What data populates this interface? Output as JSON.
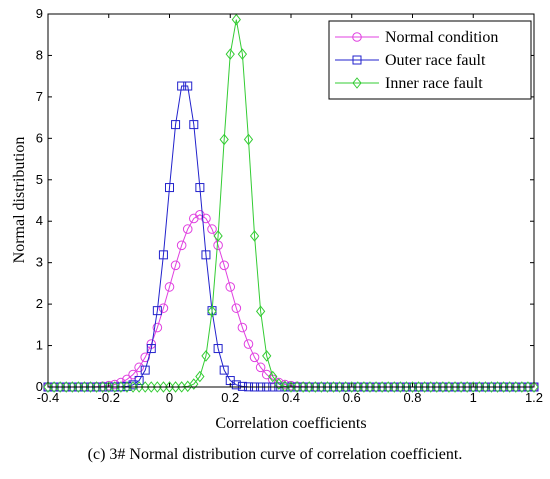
{
  "chart_data": {
    "type": "line",
    "title": "",
    "xlabel": "Correlation coefficients",
    "ylabel": "Normal distribution",
    "xlim": [
      -0.4,
      1.2
    ],
    "ylim": [
      0,
      9
    ],
    "xticks": [
      -0.4,
      -0.2,
      0,
      0.2,
      0.4,
      0.6,
      0.8,
      1,
      1.2
    ],
    "xtick_labels": [
      "-0.4",
      "-0.2",
      "0",
      "0.2",
      "0.4",
      "0.6",
      "0.8",
      "1",
      "1.2"
    ],
    "yticks": [
      0,
      1,
      2,
      3,
      4,
      5,
      6,
      7,
      8,
      9
    ],
    "ytick_labels": [
      "0",
      "1",
      "2",
      "3",
      "4",
      "5",
      "6",
      "7",
      "8",
      "9"
    ],
    "grid": false,
    "legend_position": "top-right",
    "x_step": 0.02,
    "series": [
      {
        "name": "Normal condition",
        "color": "#e040e0",
        "marker": "circle",
        "mean": 0.1,
        "std": 0.096
      },
      {
        "name": "Outer race fault",
        "color": "#2222cc",
        "marker": "square",
        "mean": 0.05,
        "std": 0.054
      },
      {
        "name": "Inner race fault",
        "color": "#33cc33",
        "marker": "diamond",
        "mean": 0.22,
        "std": 0.045
      }
    ]
  },
  "caption": "(c) 3# Normal distribution curve of correlation coefficient."
}
